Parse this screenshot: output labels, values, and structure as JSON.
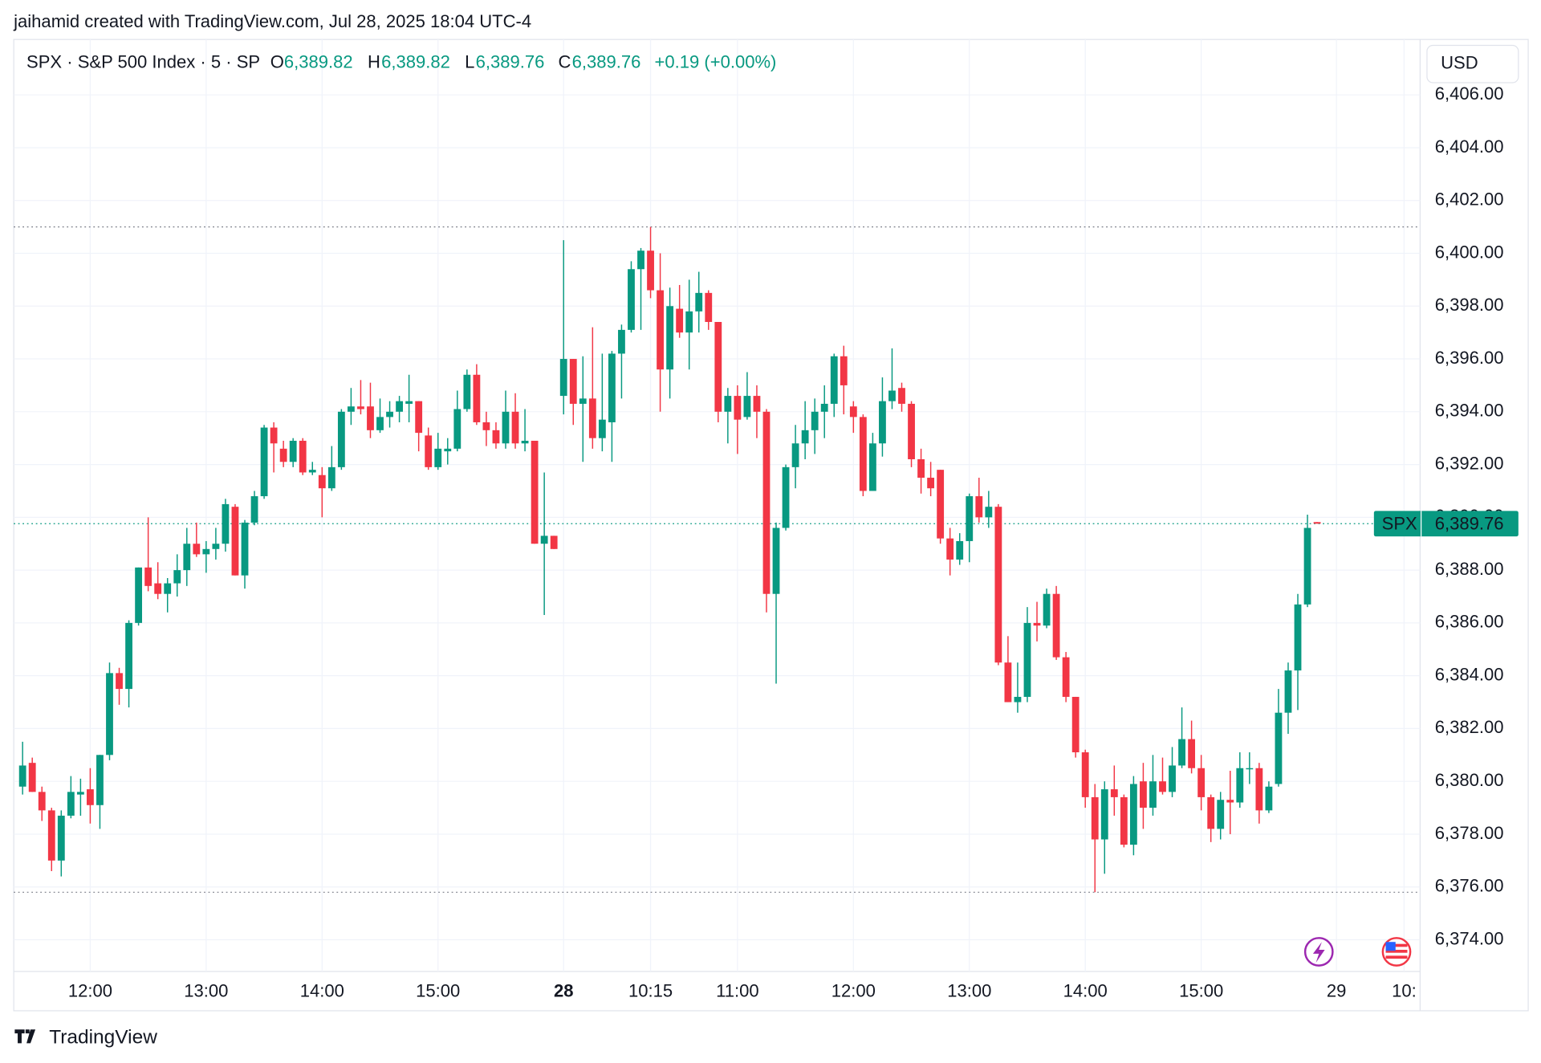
{
  "attribution": "jaihamid created with TradingView.com, Jul 28, 2025 18:04 UTC-4",
  "footer": "TradingView",
  "chart_data": {
    "type": "candlestick",
    "legend": {
      "symbol": "SPX · S&P 500 Index · 5 · SP",
      "o_key": "O",
      "o": "6,389.82",
      "h_key": "H",
      "h": "6,389.82",
      "l_key": "L",
      "l": "6,389.76",
      "c_key": "C",
      "c": "6,389.76",
      "change": "+0.19 (+0.00%)"
    },
    "currency": "USD",
    "price_tag": {
      "name": "SPX",
      "label": "6,389.76"
    },
    "up_color": "#089981",
    "down_color": "#f23645",
    "grid": true,
    "categories": [
      null,
      null,
      null,
      null,
      null,
      null,
      null,
      "12:00",
      null,
      null,
      null,
      null,
      null,
      null,
      null,
      null,
      null,
      null,
      null,
      "13:00",
      null,
      null,
      null,
      null,
      null,
      null,
      null,
      null,
      null,
      null,
      null,
      "14:00",
      null,
      null,
      null,
      null,
      null,
      null,
      null,
      null,
      null,
      null,
      null,
      "15:00",
      null,
      null,
      null,
      null,
      null,
      null,
      null,
      null,
      null,
      null,
      null,
      null,
      "28",
      null,
      null,
      null,
      null,
      null,
      null,
      null,
      null,
      "10:15",
      null,
      null,
      null,
      null,
      null,
      null,
      null,
      null,
      "11:00",
      null,
      null,
      null,
      null,
      null,
      null,
      null,
      null,
      null,
      null,
      null,
      "12:00",
      null,
      null,
      null,
      null,
      null,
      null,
      null,
      null,
      null,
      null,
      null,
      "13:00",
      null,
      null,
      null,
      null,
      null,
      null,
      null,
      null,
      null,
      null,
      null,
      "14:00",
      null,
      null,
      null,
      null,
      null,
      null,
      null,
      null,
      null,
      null,
      null,
      "15:00",
      null,
      null,
      null,
      null,
      null,
      null,
      null,
      null,
      null,
      null,
      null,
      null,
      null,
      "29",
      null,
      null,
      null,
      null,
      null,
      null,
      "10:",
      null
    ],
    "open": [
      6379.8,
      6380.7,
      6379.6,
      6378.9,
      6377.0,
      6378.7,
      6379.5,
      6379.7,
      6379.1,
      6381.0,
      6384.1,
      6383.5,
      6386.0,
      6388.1,
      6387.5,
      6387.1,
      6387.5,
      6388.0,
      6389.0,
      6388.6,
      6388.8,
      6389.0,
      6390.4,
      6387.8,
      6389.8,
      6390.8,
      6393.4,
      6392.6,
      6392.1,
      6392.9,
      6391.7,
      6391.6,
      6391.1,
      6391.9,
      6394.0,
      6394.2,
      6394.2,
      6393.3,
      6393.8,
      6394.0,
      6394.3,
      6394.4,
      6393.1,
      6391.9,
      6392.5,
      6392.6,
      6394.1,
      6395.4,
      6393.6,
      6393.3,
      6392.8,
      6394.0,
      6392.8,
      6392.9,
      6389.0,
      6389.3,
      6394.6,
      6396.0,
      6394.3,
      6394.5,
      6393.0,
      6393.6,
      6396.2,
      6397.1,
      6399.4,
      6400.1,
      6398.6,
      6395.6,
      6397.9,
      6397.0,
      6397.8,
      6398.5,
      6397.4,
      6394.0,
      6394.6,
      6393.8,
      6394.6,
      6394.0,
      6387.1,
      6389.6,
      6391.9,
      6392.8,
      6393.3,
      6394.0,
      6394.3,
      6396.1,
      6394.2,
      6393.8,
      6391.0,
      6392.8,
      6394.4,
      6394.9,
      6394.3,
      6392.2,
      6391.5,
      6391.8,
      6389.2,
      6388.4,
      6389.1,
      6390.8,
      6390.0,
      6390.4,
      6384.5,
      6383.0,
      6383.2,
      6386.0,
      6385.9,
      6387.1,
      6384.7,
      6383.2,
      6381.1,
      6379.4,
      6377.8,
      6379.7,
      6379.4,
      6377.6,
      6380.0,
      6379.0,
      6380.0,
      6379.6,
      6380.6,
      6381.6,
      6380.5,
      6379.4,
      6378.2,
      6379.3,
      6379.2,
      6380.5,
      6380.5,
      6378.9,
      6379.9,
      6382.6,
      6384.2,
      6386.7,
      6389.82,
      null,
      null,
      null,
      null,
      null,
      null,
      null,
      null,
      null,
      null
    ],
    "high": [
      6381.5,
      6380.9,
      6379.8,
      6379.0,
      6378.9,
      6380.2,
      6380.1,
      6380.5,
      6381.0,
      6384.5,
      6384.3,
      6386.1,
      6388.1,
      6390.0,
      6388.3,
      6387.7,
      6388.6,
      6389.6,
      6389.8,
      6389.1,
      6389.6,
      6390.7,
      6390.5,
      6389.9,
      6391.0,
      6393.5,
      6393.6,
      6392.9,
      6393.0,
      6393.0,
      6392.1,
      6391.9,
      6392.7,
      6394.1,
      6394.9,
      6395.2,
      6395.1,
      6394.5,
      6394.4,
      6394.6,
      6395.4,
      6394.4,
      6393.4,
      6393.2,
      6393.0,
      6394.8,
      6395.6,
      6395.8,
      6394.0,
      6393.6,
      6394.8,
      6394.7,
      6394.1,
      6392.9,
      6391.7,
      6389.3,
      6400.5,
      6396.0,
      6396.1,
      6397.2,
      6396.2,
      6396.3,
      6397.3,
      6399.7,
      6400.2,
      6401.0,
      6400.0,
      6398.7,
      6398.8,
      6399.0,
      6399.3,
      6398.6,
      6397.4,
      6394.9,
      6395.0,
      6395.5,
      6395.0,
      6394.1,
      6389.8,
      6392.0,
      6393.5,
      6394.4,
      6394.5,
      6395.0,
      6396.2,
      6396.5,
      6394.4,
      6393.9,
      6393.2,
      6395.3,
      6396.4,
      6395.1,
      6394.4,
      6392.6,
      6392.1,
      6391.8,
      6389.6,
      6389.4,
      6390.9,
      6391.5,
      6391.0,
      6390.5,
      6385.5,
      6384.5,
      6386.6,
      6386.8,
      6387.3,
      6387.4,
      6384.9,
      6383.2,
      6381.2,
      6379.9,
      6380.0,
      6380.6,
      6379.5,
      6380.2,
      6380.7,
      6381.0,
      6380.9,
      6381.3,
      6382.8,
      6382.3,
      6381.0,
      6379.5,
      6379.6,
      6380.4,
      6381.1,
      6381.1,
      6380.7,
      6380.0,
      6383.5,
      6384.5,
      6387.1,
      6390.1,
      6389.82,
      null,
      null,
      null,
      null,
      null,
      null,
      null,
      null,
      null,
      null
    ],
    "low": [
      6379.5,
      6379.6,
      6378.5,
      6376.6,
      6376.4,
      6378.6,
      6378.7,
      6378.4,
      6378.2,
      6380.8,
      6382.9,
      6382.8,
      6385.9,
      6387.2,
      6386.9,
      6386.4,
      6387.0,
      6387.4,
      6388.5,
      6387.9,
      6388.4,
      6388.7,
      6387.8,
      6387.3,
      6389.7,
      6390.7,
      6391.7,
      6391.9,
      6391.9,
      6391.6,
      6391.6,
      6390.0,
      6391.0,
      6391.8,
      6393.5,
      6393.9,
      6393.0,
      6393.2,
      6393.4,
      6393.6,
      6393.6,
      6392.5,
      6391.8,
      6391.8,
      6392.0,
      6392.5,
      6394.0,
      6393.5,
      6392.7,
      6392.6,
      6392.6,
      6392.6,
      6392.5,
      6389.0,
      6386.3,
      6388.8,
      6393.9,
      6393.5,
      6392.1,
      6392.6,
      6392.5,
      6392.1,
      6394.5,
      6397.0,
      6397.1,
      6398.3,
      6394.0,
      6394.5,
      6396.8,
      6395.6,
      6397.0,
      6397.1,
      6393.6,
      6392.8,
      6392.4,
      6393.7,
      6393.0,
      6386.4,
      6383.7,
      6389.5,
      6391.1,
      6392.2,
      6392.4,
      6393.0,
      6393.8,
      6393.9,
      6393.2,
      6390.8,
      6391.0,
      6392.3,
      6394.1,
      6394.0,
      6391.9,
      6390.9,
      6390.8,
      6389.0,
      6387.8,
      6388.2,
      6388.3,
      6389.8,
      6389.6,
      6384.4,
      6383.0,
      6382.6,
      6383.0,
      6385.3,
      6385.8,
      6384.6,
      6383.0,
      6380.9,
      6379.0,
      6375.8,
      6376.5,
      6378.7,
      6377.5,
      6377.2,
      6378.2,
      6378.7,
      6379.5,
      6379.4,
      6380.5,
      6380.3,
      6378.9,
      6377.7,
      6377.8,
      6378.0,
      6379.0,
      6379.9,
      6378.4,
      6378.8,
      6379.8,
      6381.8,
      6382.7,
      6386.6,
      6389.76,
      null,
      null,
      null,
      null,
      null,
      null,
      null,
      null,
      null,
      null
    ],
    "close": [
      6380.6,
      6379.6,
      6378.9,
      6377.0,
      6378.7,
      6379.6,
      6379.6,
      6379.1,
      6381.0,
      6384.1,
      6383.5,
      6386.0,
      6388.1,
      6387.4,
      6387.1,
      6387.5,
      6388.0,
      6389.0,
      6388.6,
      6388.8,
      6389.0,
      6390.5,
      6387.8,
      6389.8,
      6390.8,
      6393.4,
      6392.8,
      6392.1,
      6392.9,
      6391.7,
      6391.8,
      6391.1,
      6391.9,
      6394.0,
      6394.2,
      6394.1,
      6393.3,
      6393.8,
      6394.0,
      6394.4,
      6394.4,
      6393.2,
      6391.9,
      6392.6,
      6392.6,
      6394.1,
      6395.4,
      6393.6,
      6393.3,
      6392.8,
      6394.0,
      6392.8,
      6392.9,
      6389.0,
      6389.3,
      6388.8,
      6396.0,
      6394.3,
      6394.5,
      6393.0,
      6393.7,
      6396.2,
      6397.1,
      6399.4,
      6400.1,
      6398.6,
      6395.6,
      6398.0,
      6397.0,
      6397.8,
      6398.5,
      6397.4,
      6394.0,
      6394.6,
      6393.7,
      6394.6,
      6394.0,
      6387.1,
      6389.6,
      6391.9,
      6392.8,
      6393.3,
      6394.0,
      6394.3,
      6396.1,
      6395.0,
      6393.8,
      6391.0,
      6392.8,
      6394.4,
      6394.8,
      6394.3,
      6392.2,
      6391.5,
      6391.1,
      6389.2,
      6388.4,
      6389.1,
      6390.8,
      6390.0,
      6390.4,
      6384.5,
      6383.0,
      6383.2,
      6386.0,
      6385.9,
      6387.1,
      6384.7,
      6383.2,
      6381.1,
      6379.4,
      6377.8,
      6379.7,
      6379.4,
      6377.6,
      6379.9,
      6379.0,
      6380.0,
      6379.6,
      6380.6,
      6381.6,
      6380.5,
      6379.4,
      6378.2,
      6379.3,
      6379.2,
      6380.5,
      6380.5,
      6378.9,
      6379.8,
      6382.6,
      6384.2,
      6386.7,
      6389.6,
      6389.76,
      null,
      null,
      null,
      null,
      null,
      null,
      null,
      null,
      null,
      null
    ],
    "ylim": [
      6372.8,
      6408.1
    ],
    "yticks": [
      {
        "value": 6374,
        "label": "6,374.00"
      },
      {
        "value": 6376,
        "label": "6,376.00"
      },
      {
        "value": 6378,
        "label": "6,378.00"
      },
      {
        "value": 6380,
        "label": "6,380.00"
      },
      {
        "value": 6382,
        "label": "6,382.00"
      },
      {
        "value": 6384,
        "label": "6,384.00"
      },
      {
        "value": 6386,
        "label": "6,386.00"
      },
      {
        "value": 6388,
        "label": "6,388.00"
      },
      {
        "value": 6390,
        "label": "6,390.00"
      },
      {
        "value": 6392,
        "label": "6,392.00"
      },
      {
        "value": 6394,
        "label": "6,394.00"
      },
      {
        "value": 6396,
        "label": "6,396.00"
      },
      {
        "value": 6398,
        "label": "6,398.00"
      },
      {
        "value": 6400,
        "label": "6,400.00"
      },
      {
        "value": 6402,
        "label": "6,402.00"
      },
      {
        "value": 6404,
        "label": "6,404.00"
      },
      {
        "value": 6406,
        "label": "6,406.00"
      }
    ]
  }
}
